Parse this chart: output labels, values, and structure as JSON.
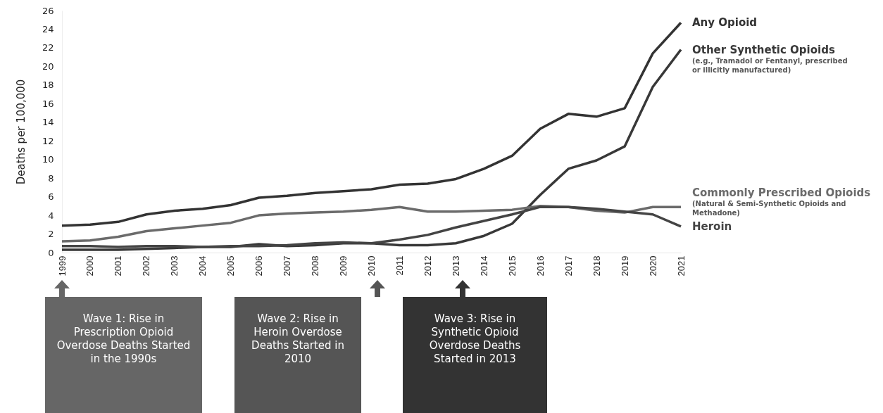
{
  "chart_data": {
    "type": "line",
    "ylabel": "Deaths per 100,000",
    "categories": [
      "1999",
      "2000",
      "2001",
      "2002",
      "2003",
      "2004",
      "2005",
      "2006",
      "2007",
      "2008",
      "2009",
      "2010",
      "2011",
      "2012",
      "2013",
      "2014",
      "2015",
      "2016",
      "2017",
      "2018",
      "2019",
      "2020",
      "2021"
    ],
    "series": [
      {
        "name": "Any Opioid",
        "color": "#333333",
        "values": [
          2.9,
          3.0,
          3.3,
          4.1,
          4.5,
          4.7,
          5.1,
          5.9,
          6.1,
          6.4,
          6.6,
          6.8,
          7.3,
          7.4,
          7.9,
          9.0,
          10.4,
          13.3,
          14.9,
          14.6,
          15.5,
          21.4,
          24.7
        ]
      },
      {
        "name": "Other Synthetic Opioids",
        "color": "#383838",
        "values": [
          0.3,
          0.3,
          0.3,
          0.4,
          0.5,
          0.6,
          0.6,
          0.9,
          0.7,
          0.8,
          1.0,
          1.0,
          0.8,
          0.8,
          1.0,
          1.8,
          3.1,
          6.2,
          9.0,
          9.9,
          11.4,
          17.8,
          21.8
        ]
      },
      {
        "name": "Commonly Prescribed Opioids",
        "color": "#6b6b6b",
        "values": [
          1.2,
          1.3,
          1.7,
          2.3,
          2.6,
          2.9,
          3.2,
          4.0,
          4.2,
          4.3,
          4.4,
          4.6,
          4.9,
          4.4,
          4.4,
          4.5,
          4.6,
          5.0,
          4.9,
          4.5,
          4.3,
          4.9,
          4.9
        ]
      },
      {
        "name": "Heroin",
        "color": "#444444",
        "values": [
          0.7,
          0.7,
          0.6,
          0.7,
          0.7,
          0.6,
          0.7,
          0.7,
          0.8,
          1.0,
          1.1,
          1.0,
          1.4,
          1.9,
          2.7,
          3.4,
          4.1,
          4.9,
          4.9,
          4.7,
          4.4,
          4.1,
          2.8
        ]
      }
    ],
    "ylim": [
      0,
      26
    ],
    "yticks": [
      0,
      2,
      4,
      6,
      8,
      10,
      12,
      14,
      16,
      18,
      20,
      22,
      24,
      26
    ],
    "grid": false,
    "marker": "none",
    "line_style": "solid",
    "annotations": [
      {
        "text": "(e.g., Tramadol or Fentanyl, prescribed or illicitly manufactured)",
        "x": "2021",
        "y": 21.8
      },
      {
        "text": "(Natural & Semi-Synthetic Opioids and Methadone)",
        "x": "2021",
        "y": 4.9
      },
      "Wave 1: Rise in Prescription Opioid Overdose Deaths Started in the 1990s",
      "Wave 2: Rise in Heroin Overdose Deaths Started in 2010",
      "Wave 3: Rise in Synthetic Opioid Overdose Deaths Started in 2013"
    ]
  }
}
